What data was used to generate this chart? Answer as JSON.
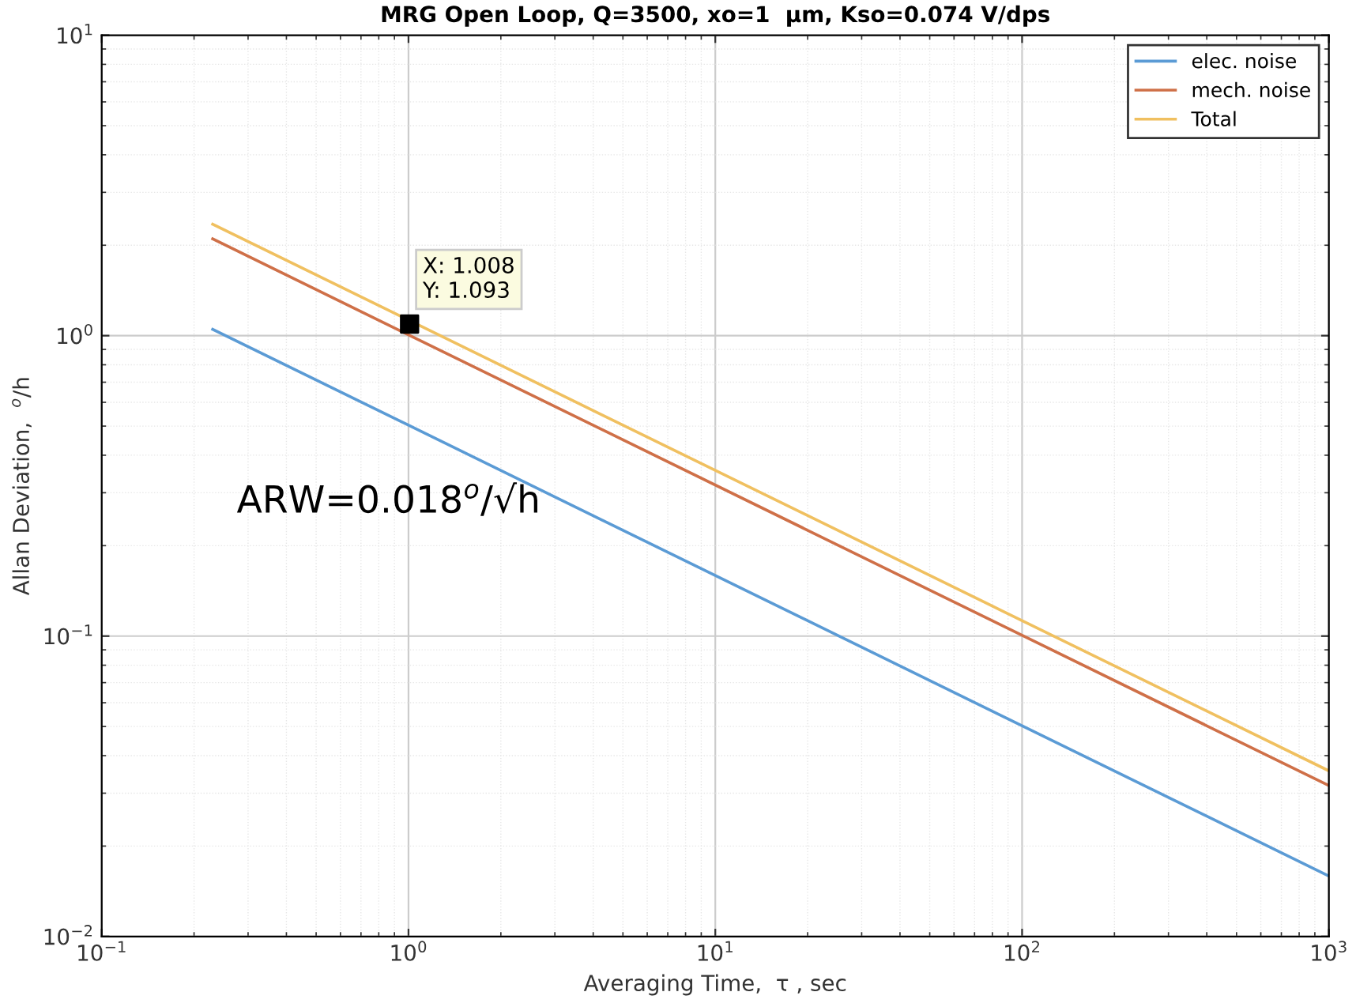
{
  "chart_data": {
    "type": "line",
    "title": "MRG Open Loop, Q=3500, xo=1  μm, Kso=0.074 V/dps",
    "xlabel": "Averaging Time,  τ , sec",
    "ylabel": "Allan Deviation,  $^{o}$/h",
    "log": "xy",
    "grid": true,
    "legend": "top right",
    "marker": "none",
    "line_style": "solid",
    "xlim": [
      0.1,
      1000
    ],
    "ylim": [
      0.01,
      10
    ],
    "xticks": [
      {
        "value": 0.1,
        "label": "10$^{−1}$"
      },
      {
        "value": 1,
        "label": "10$^{0}$"
      },
      {
        "value": 10,
        "label": "10$^{1}$"
      },
      {
        "value": 100,
        "label": "10$^{2}$"
      },
      {
        "value": 1000,
        "label": "10$^{3}$"
      }
    ],
    "yticks": [
      {
        "value": 0.01,
        "label": "10$^{−2}$"
      },
      {
        "value": 0.1,
        "label": "10$^{−1}$"
      },
      {
        "value": 1,
        "label": "10$^{0}$"
      },
      {
        "value": 10,
        "label": "10$^{1}$"
      }
    ],
    "series": [
      {
        "name": "elec. noise",
        "color": "#5b9bd5",
        "x": [
          0.23,
          1000
        ],
        "values": [
          1.05,
          0.0159
        ]
      },
      {
        "name": "mech. noise",
        "color": "#cf7048",
        "x": [
          0.23,
          1000
        ],
        "values": [
          2.1,
          0.0318
        ]
      },
      {
        "name": "Total",
        "color": "#f0c060",
        "x": [
          0.23,
          1000
        ],
        "values": [
          2.35,
          0.0356
        ]
      },
      {
        "type": "scatter",
        "marker": "square",
        "color": "#000000",
        "x": [
          1.008
        ],
        "values": [
          1.093
        ]
      }
    ],
    "annotations": [
      {
        "text": "X: 1.008\nY: 1.093",
        "x": 1.008,
        "y": 1.093
      },
      "ARW=0.018$^{o}$/√h"
    ]
  }
}
